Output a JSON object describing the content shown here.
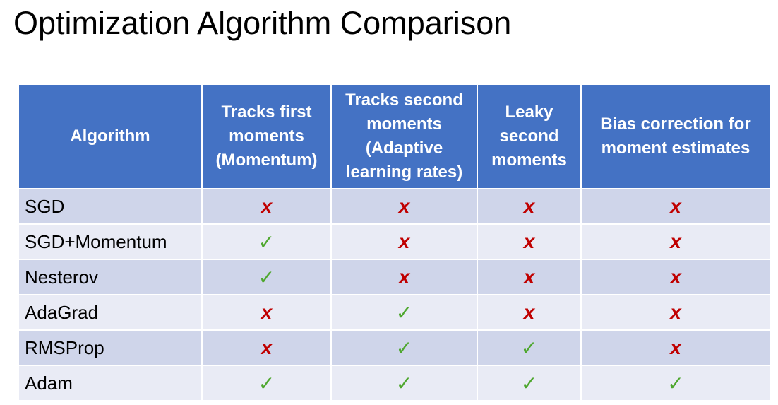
{
  "title": "Optimization Algorithm Comparison",
  "table": {
    "headers": [
      "Algorithm",
      "Tracks first\nmoments\n(Momentum)",
      "Tracks second\nmoments\n(Adaptive\nlearning rates)",
      "Leaky\nsecond\nmoments",
      "Bias correction for\nmoment estimates"
    ],
    "rows": [
      {
        "name": "SGD",
        "marks": [
          false,
          false,
          false,
          false
        ]
      },
      {
        "name": "SGD+Momentum",
        "marks": [
          true,
          false,
          false,
          false
        ]
      },
      {
        "name": "Nesterov",
        "marks": [
          true,
          false,
          false,
          false
        ]
      },
      {
        "name": "AdaGrad",
        "marks": [
          false,
          true,
          false,
          false
        ]
      },
      {
        "name": "RMSProp",
        "marks": [
          false,
          true,
          true,
          false
        ]
      },
      {
        "name": "Adam",
        "marks": [
          true,
          true,
          true,
          true
        ]
      }
    ]
  },
  "symbols": {
    "yes": "✓",
    "no": "x",
    "yes_icon": "check-icon",
    "no_icon": "cross-icon"
  },
  "colors": {
    "header_bg": "#4472c4",
    "row_odd_bg": "#cfd5ea",
    "row_even_bg": "#e9ebf5",
    "check": "#4ea72e",
    "cross": "#c00000"
  }
}
